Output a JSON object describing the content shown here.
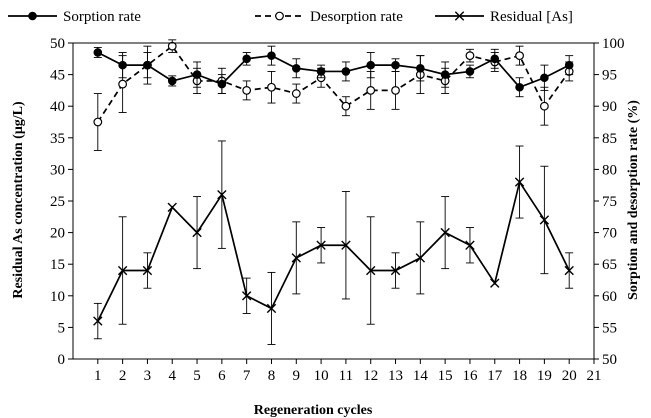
{
  "chart_data": {
    "type": "line",
    "xlabel": "Regeneration cycles",
    "ylabel_left": "Residual As concentration  (μg/L)",
    "ylabel_right": "Sorption and desorption rate (%)",
    "x_ticks": [
      "1",
      "2",
      "3",
      "4",
      "5",
      "6",
      "7",
      "8",
      "9",
      "10",
      "11",
      "12",
      "13",
      "14",
      "15",
      "16",
      "17",
      "18",
      "19",
      "20",
      "21"
    ],
    "xlim": [
      0,
      21
    ],
    "ylim_left": [
      0,
      50
    ],
    "ylim_right": [
      50,
      100
    ],
    "y_ticks_left": [
      "0",
      "5",
      "10",
      "15",
      "20",
      "25",
      "30",
      "35",
      "40",
      "45",
      "50"
    ],
    "y_ticks_right": [
      "50",
      "55",
      "60",
      "65",
      "70",
      "75",
      "80",
      "85",
      "90",
      "95",
      "100"
    ],
    "legend_position": "top",
    "grid": false,
    "series": [
      {
        "name": "Sorption rate",
        "axis": "right",
        "marker": "filled-circle",
        "linestyle": "solid",
        "color": "#000000",
        "x": [
          1,
          2,
          3,
          4,
          5,
          6,
          7,
          8,
          9,
          10,
          11,
          12,
          13,
          14,
          15,
          16,
          17,
          18,
          19,
          20
        ],
        "values": [
          98.5,
          96.5,
          96.5,
          94,
          95,
          93.5,
          97.5,
          98,
          96,
          95.5,
          95.5,
          96.5,
          96.5,
          96,
          95,
          95.5,
          97.5,
          93,
          94.5,
          96.5
        ],
        "errors": [
          0.8,
          2,
          2,
          0.8,
          2,
          1.5,
          1,
          1.5,
          1.5,
          1,
          1.5,
          2,
          1,
          2,
          2,
          1,
          1.5,
          1.5,
          2,
          1.5
        ]
      },
      {
        "name": "Desorption rate",
        "axis": "right",
        "marker": "open-circle",
        "linestyle": "dashed",
        "color": "#000000",
        "x": [
          1,
          2,
          3,
          4,
          5,
          6,
          7,
          8,
          9,
          10,
          11,
          12,
          13,
          14,
          15,
          16,
          17,
          18,
          19,
          20
        ],
        "values": [
          87.5,
          93.5,
          96.5,
          99.5,
          94,
          94,
          92.5,
          93,
          92,
          94.5,
          90,
          92.5,
          92.5,
          95,
          94,
          98,
          97,
          98,
          90,
          95.5
        ],
        "errors": [
          4.5,
          4.5,
          3,
          1,
          2,
          2,
          1.5,
          2.5,
          1.5,
          1.5,
          1.5,
          3,
          3,
          3,
          2,
          1,
          1.5,
          1.5,
          3,
          1.5
        ]
      },
      {
        "name": "Residual [As]",
        "axis": "left",
        "marker": "asterisk",
        "linestyle": "solid",
        "color": "#000000",
        "x": [
          1,
          2,
          3,
          4,
          5,
          6,
          7,
          8,
          9,
          10,
          11,
          12,
          13,
          14,
          15,
          16,
          17,
          18,
          19,
          20
        ],
        "values": [
          6,
          14,
          14,
          24,
          20,
          26,
          10,
          8,
          16,
          18,
          18,
          14,
          14,
          16,
          20,
          18,
          12,
          28,
          22,
          14
        ],
        "errors": [
          2.8,
          8.5,
          2.8,
          0,
          5.7,
          8.5,
          2.8,
          5.7,
          5.7,
          2.8,
          8.5,
          8.5,
          2.8,
          5.7,
          5.7,
          2.8,
          0,
          5.7,
          8.5,
          2.8
        ]
      }
    ]
  }
}
